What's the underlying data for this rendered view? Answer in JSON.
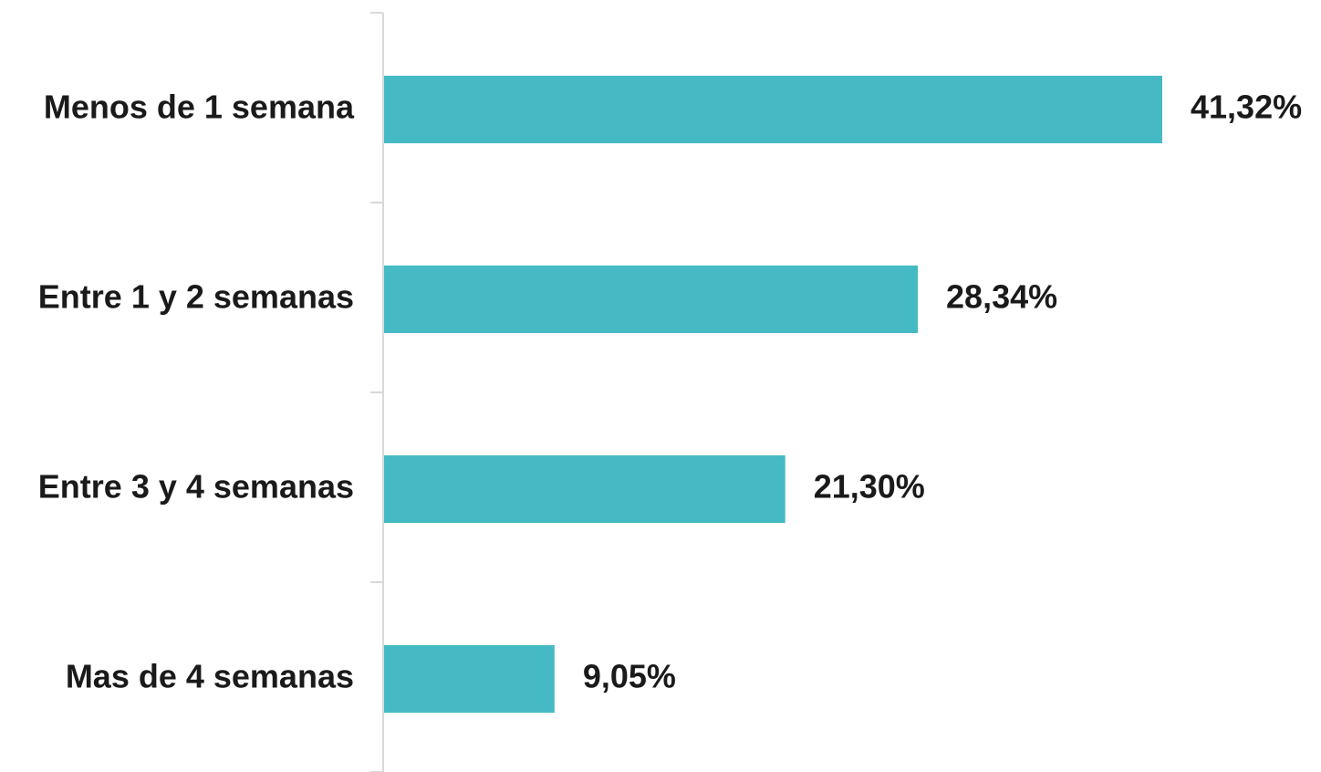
{
  "chart_data": {
    "type": "bar",
    "orientation": "horizontal",
    "categories": [
      "Menos de 1 semana",
      "Entre 1 y 2 semanas",
      "Entre 3 y 4 semanas",
      "Mas de 4 semanas"
    ],
    "values": [
      41.32,
      28.34,
      21.3,
      9.05
    ],
    "data_labels": [
      "41,32%",
      "28,34%",
      "21,30%",
      "9,05%"
    ],
    "title": "",
    "xlabel": "",
    "ylabel": "",
    "xlim": [
      0,
      41.32
    ],
    "grid": false,
    "legend": "none",
    "colors": {
      "bar": "#45bac5",
      "axis": "#d9d9d9",
      "text": "#1a1a1a",
      "background": "#ffffff"
    }
  }
}
